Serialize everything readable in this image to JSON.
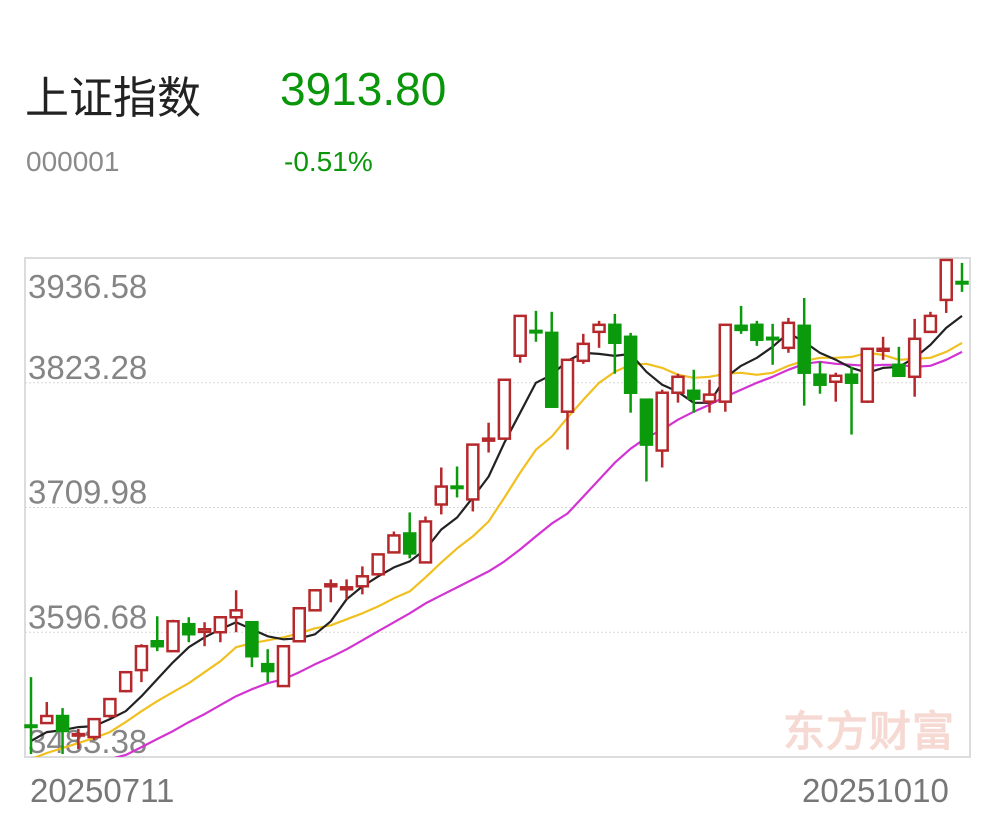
{
  "header": {
    "title": "上证指数",
    "price": "3913.80",
    "code": "000001",
    "change_pct": "-0.51%"
  },
  "watermark": "东方财富",
  "colors": {
    "up": "#b5282b",
    "down": "#0b9a0b",
    "ma5": "#222222",
    "ma10": "#f0c020",
    "ma20": "#d333d3",
    "price_text": "#0a960a"
  },
  "chart_data": {
    "type": "candlestick",
    "y_ticks": [
      "3936.58",
      "3823.28",
      "3709.98",
      "3596.68",
      "3483.38"
    ],
    "ylim": [
      3483.38,
      3936.58
    ],
    "x_labels": [
      "20250711",
      "20251010"
    ],
    "grid": "horizontal dotted",
    "ohlc": [
      [
        3512.0,
        3555.9,
        3486.1,
        3511.5
      ],
      [
        3514.2,
        3533.3,
        3514.2,
        3520.6
      ],
      [
        3520.6,
        3527.8,
        3486.1,
        3507.0
      ],
      [
        3503.0,
        3508.8,
        3490.6,
        3504.2
      ],
      [
        3501.5,
        3517.8,
        3499.0,
        3517.8
      ],
      [
        3520.6,
        3537.0,
        3519.0,
        3536.0
      ],
      [
        3543.2,
        3561.0,
        3542.0,
        3560.4
      ],
      [
        3562.3,
        3585.8,
        3551.4,
        3584.0
      ],
      [
        3588.5,
        3611.2,
        3579.5,
        3584.0
      ],
      [
        3579.5,
        3608.0,
        3579.0,
        3606.7
      ],
      [
        3604.0,
        3610.3,
        3587.6,
        3594.9
      ],
      [
        3597.0,
        3605.8,
        3584.0,
        3599.4
      ],
      [
        3596.7,
        3611.0,
        3587.6,
        3610.3
      ],
      [
        3610.3,
        3634.8,
        3596.7,
        3616.6
      ],
      [
        3605.8,
        3606.5,
        3565.0,
        3574.9
      ],
      [
        3567.7,
        3581.3,
        3551.4,
        3561.4
      ],
      [
        3547.8,
        3585.0,
        3547.0,
        3584.0
      ],
      [
        3588.5,
        3619.0,
        3588.0,
        3618.5
      ],
      [
        3616.6,
        3635.5,
        3616.0,
        3634.8
      ],
      [
        3638.4,
        3644.7,
        3623.9,
        3640.2
      ],
      [
        3635.7,
        3644.7,
        3626.6,
        3637.5
      ],
      [
        3638.4,
        3656.5,
        3631.1,
        3647.5
      ],
      [
        3649.3,
        3668.0,
        3649.0,
        3667.4
      ],
      [
        3669.2,
        3688.2,
        3669.0,
        3684.6
      ],
      [
        3686.4,
        3705.5,
        3663.8,
        3668.3
      ],
      [
        3660.1,
        3701.8,
        3660.0,
        3697.3
      ],
      [
        3712.7,
        3746.3,
        3703.7,
        3729.0
      ],
      [
        3729.0,
        3747.2,
        3719.1,
        3728.1
      ],
      [
        3717.3,
        3768.0,
        3706.4,
        3767.1
      ],
      [
        3770.7,
        3787.0,
        3759.9,
        3772.5
      ],
      [
        3772.5,
        3826.5,
        3772.0,
        3826.0
      ],
      [
        3847.8,
        3884.5,
        3841.4,
        3884.0
      ],
      [
        3870.4,
        3888.6,
        3860.5,
        3869.5
      ],
      [
        3868.6,
        3887.7,
        3801.0,
        3801.5
      ],
      [
        3797.0,
        3844.5,
        3762.6,
        3844.1
      ],
      [
        3843.2,
        3867.7,
        3840.5,
        3858.6
      ],
      [
        3869.5,
        3879.5,
        3855.0,
        3875.9
      ],
      [
        3875.9,
        3885.8,
        3831.5,
        3859.6
      ],
      [
        3865.0,
        3868.6,
        3796.1,
        3814.2
      ],
      [
        3807.9,
        3808.0,
        3733.6,
        3767.1
      ],
      [
        3761.7,
        3817.0,
        3746.3,
        3814.2
      ],
      [
        3814.2,
        3831.5,
        3805.2,
        3828.7
      ],
      [
        3816.0,
        3835.1,
        3796.1,
        3808.8
      ],
      [
        3806.1,
        3826.0,
        3796.1,
        3812.5
      ],
      [
        3806.1,
        3876.0,
        3797.0,
        3875.9
      ],
      [
        3875.0,
        3893.1,
        3867.7,
        3871.3
      ],
      [
        3875.9,
        3879.5,
        3856.8,
        3862.3
      ],
      [
        3864.1,
        3876.8,
        3839.6,
        3863.5
      ],
      [
        3855.0,
        3882.2,
        3850.5,
        3877.7
      ],
      [
        3875.0,
        3900.3,
        3802.5,
        3832.4
      ],
      [
        3830.6,
        3842.3,
        3813.3,
        3821.5
      ],
      [
        3824.2,
        3832.4,
        3806.1,
        3829.6
      ],
      [
        3830.6,
        3837.8,
        3776.2,
        3823.3
      ],
      [
        3806.1,
        3855.0,
        3805.0,
        3854.1
      ],
      [
        3852.3,
        3865.0,
        3844.1,
        3854.1
      ],
      [
        3839.6,
        3855.9,
        3829.0,
        3829.6
      ],
      [
        3828.7,
        3881.3,
        3810.6,
        3863.2
      ],
      [
        3869.5,
        3887.7,
        3868.6,
        3884.0
      ],
      [
        3898.5,
        3935.5,
        3886.7,
        3934.8
      ],
      [
        3914.8,
        3932.1,
        3905.8,
        3913.8
      ]
    ],
    "ma5": [
      3497.9,
      3506.0,
      3507.8,
      3510.5,
      3511.4,
      3517.8,
      3525.0,
      3538.6,
      3554.0,
      3569.4,
      3583.1,
      3592.1,
      3599.4,
      3605.7,
      3599.4,
      3593.0,
      3590.3,
      3591.2,
      3594.8,
      3606.6,
      3626.6,
      3638.3,
      3647.4,
      3655.6,
      3661.0,
      3671.9,
      3690.0,
      3700.9,
      3719.0,
      3738.0,
      3768.9,
      3796.1,
      3823.2,
      3830.5,
      3843.2,
      3850.4,
      3849.5,
      3847.7,
      3849.5,
      3833.2,
      3821.4,
      3815.1,
      3805.1,
      3805.1,
      3827.8,
      3838.7,
      3845.9,
      3855.9,
      3868.6,
      3860.4,
      3850.4,
      3844.1,
      3836.8,
      3832.3,
      3836.8,
      3837.8,
      3845.9,
      3857.7,
      3873.1,
      3884.0
    ],
    "ma10": [
      3481.5,
      3487.0,
      3491.5,
      3496.0,
      3500.6,
      3506.0,
      3515.1,
      3525.0,
      3534.1,
      3542.3,
      3550.4,
      3560.4,
      3570.4,
      3583.1,
      3586.7,
      3589.4,
      3592.1,
      3595.7,
      3600.3,
      3603.0,
      3608.4,
      3613.9,
      3620.2,
      3627.5,
      3633.8,
      3646.5,
      3660.1,
      3672.8,
      3683.7,
      3697.3,
      3719.0,
      3741.7,
      3762.5,
      3774.3,
      3791.5,
      3807.8,
      3823.2,
      3833.2,
      3839.6,
      3840.5,
      3836.8,
      3830.5,
      3827.8,
      3828.7,
      3831.4,
      3832.3,
      3830.5,
      3832.3,
      3838.7,
      3843.2,
      3845.9,
      3845.9,
      3846.8,
      3850.4,
      3848.6,
      3844.1,
      3845.0,
      3845.9,
      3851.3,
      3859.5
    ],
    "ma20": [
      3454.3,
      3458.9,
      3464.3,
      3468.8,
      3476.1,
      3481.5,
      3485.2,
      3492.4,
      3499.7,
      3506.9,
      3515.1,
      3522.3,
      3530.5,
      3538.6,
      3545.0,
      3550.4,
      3554.0,
      3560.4,
      3567.6,
      3574.0,
      3581.2,
      3589.4,
      3597.6,
      3605.7,
      3613.9,
      3622.9,
      3630.2,
      3637.4,
      3644.7,
      3651.9,
      3661.0,
      3671.9,
      3683.7,
      3695.4,
      3704.5,
      3719.9,
      3735.3,
      3750.7,
      3763.4,
      3773.4,
      3780.6,
      3789.7,
      3797.0,
      3803.3,
      3810.6,
      3816.9,
      3823.2,
      3828.7,
      3835.0,
      3840.5,
      3842.3,
      3840.5,
      3839.6,
      3838.7,
      3839.6,
      3839.6,
      3837.8,
      3838.7,
      3844.1,
      3851.3
    ]
  }
}
